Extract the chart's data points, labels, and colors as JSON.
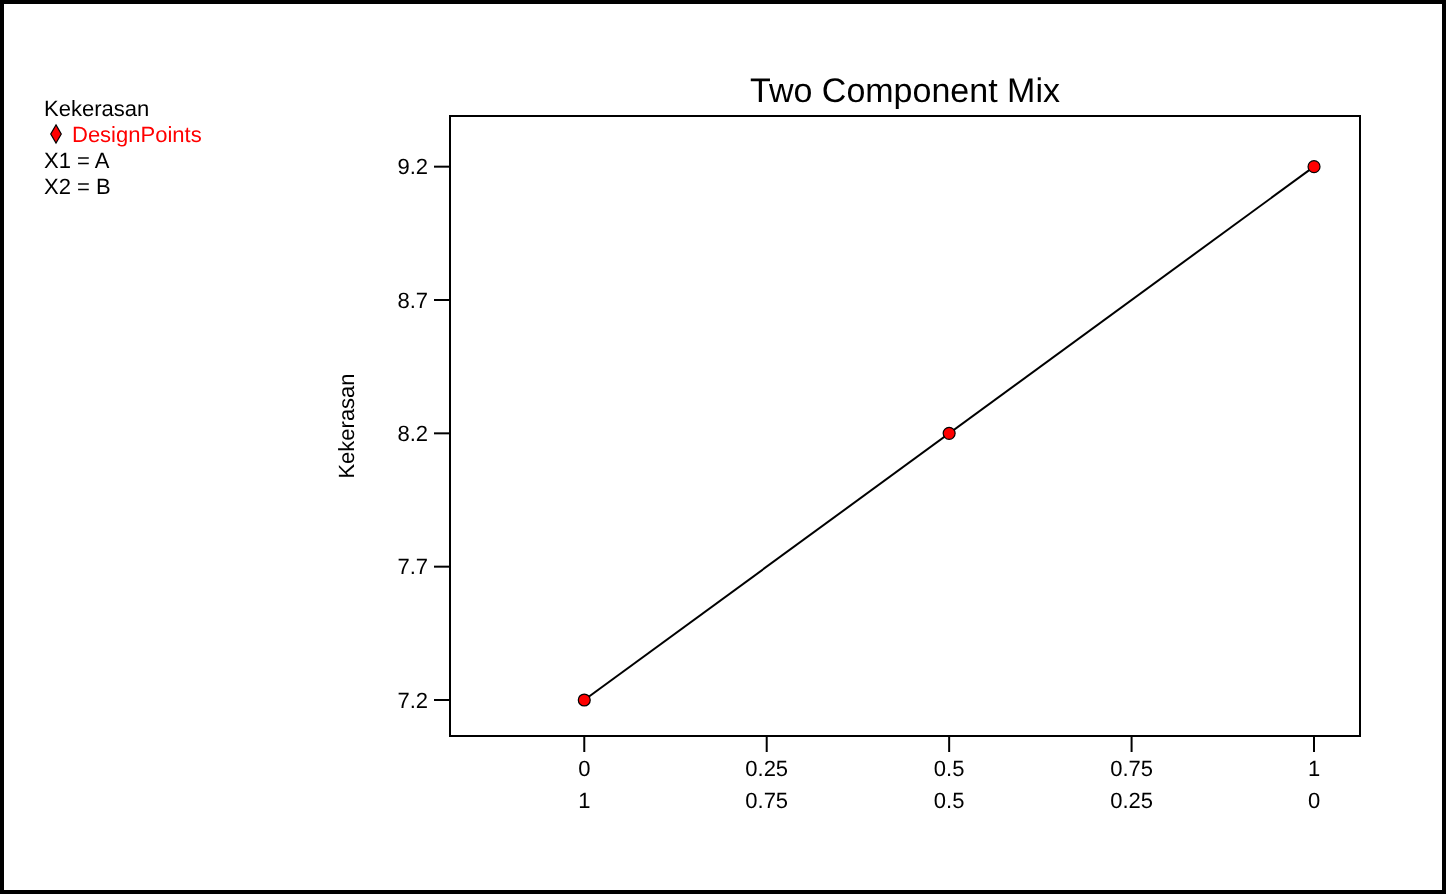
{
  "chart_data": {
    "type": "scatter",
    "title": "Two Component Mix",
    "ylabel": "Kekerasan",
    "legend_title": "Kekerasan",
    "x": [
      0,
      0.5,
      1
    ],
    "series": [
      {
        "name": "DesignPoints",
        "color": "#ff0000",
        "marker": "circle",
        "values": [
          7.2,
          8.2,
          9.2
        ]
      },
      {
        "type": "line",
        "color": "#000000",
        "x": [
          0,
          1
        ],
        "values": [
          7.2,
          9.2
        ]
      }
    ],
    "xlim": [
      -0.184,
      1.063
    ],
    "xticks": [
      0,
      0.25,
      0.5,
      0.75,
      1
    ],
    "x2lim": [
      1.184,
      -0.063
    ],
    "x2ticks": [
      1,
      0.75,
      0.5,
      0.25,
      0
    ],
    "ylim": [
      7.065,
      9.39
    ],
    "yticks": [
      7.2,
      7.7,
      8.2,
      8.7,
      9.2
    ],
    "annotations": [
      "X1 = A",
      "X2 = B"
    ],
    "grid": false,
    "legend": "top left"
  }
}
